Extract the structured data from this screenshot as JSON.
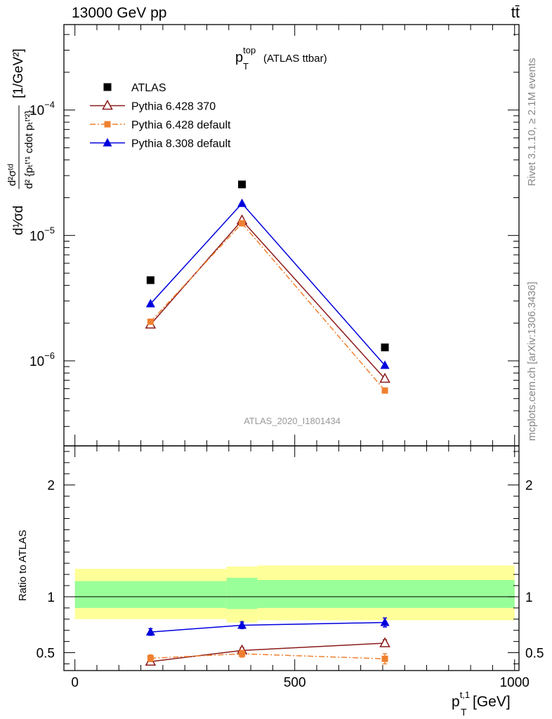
{
  "header": {
    "left": "13000 GeV pp",
    "right": "tt̄"
  },
  "plot_title": {
    "main": "p",
    "sup": "top",
    "sub": "T",
    "tail": " (ATLAS ttbar)"
  },
  "watermark": "ATLAS_2020_I1801434",
  "side_text": {
    "rivet": "Rivet 3.1.10, ≥ 2.1M events",
    "mcplots": "mcplots.cern.ch [arXiv:1306.3436]"
  },
  "y_axis_title": {
    "numer": "d²σᵗᵈ",
    "denom": "d² {pₜᵗʹ¹ cdot pₜᵗʹ²}",
    "prefix": "d¹⁄σd",
    "unit": "[1/GeV²]"
  },
  "ratio_axis_title": "Ratio to ATLAS",
  "x_axis_title": {
    "main": "p",
    "sup": "t,1",
    "sub": "T",
    "unit": " [GeV]"
  },
  "chart_data": [
    {
      "type": "line",
      "panel": "main",
      "y_scale": "log",
      "xlim": [
        -25,
        1010
      ],
      "ylim": [
        2.1e-07,
        0.00048
      ],
      "y_ticks": [
        {
          "value": 1e-06,
          "base": "10",
          "exp": "−6"
        },
        {
          "value": 1e-05,
          "base": "10",
          "exp": "−5"
        },
        {
          "value": 0.0001,
          "base": "10",
          "exp": "−4"
        }
      ],
      "legend_position": "top-left",
      "series": [
        {
          "name": "ATLAS",
          "style": "data",
          "color": "#000000",
          "marker": "square",
          "x": [
            172,
            380,
            705
          ],
          "y": [
            4.4e-06,
            2.55e-05,
            1.28e-06
          ]
        },
        {
          "name": "Pythia 6.428 370",
          "style": "solid",
          "color": "#8b1a1a",
          "marker": "triangle-open",
          "x": [
            172,
            380,
            705
          ],
          "y": [
            1.95e-06,
            1.32e-05,
            7.2e-07
          ]
        },
        {
          "name": "Pythia 6.428 default",
          "style": "dashdot",
          "color": "#f08030",
          "marker": "square-small",
          "x": [
            172,
            380,
            705
          ],
          "y": [
            2.05e-06,
            1.25e-05,
            5.8e-07
          ]
        },
        {
          "name": "Pythia 8.308 default",
          "style": "solid",
          "color": "#0000dd",
          "marker": "triangle",
          "x": [
            172,
            380,
            705
          ],
          "y": [
            2.85e-06,
            1.8e-05,
            9.2e-07
          ]
        }
      ]
    },
    {
      "type": "line",
      "panel": "ratio",
      "xlim": [
        -25,
        1010
      ],
      "ylim": [
        0.34,
        2.35
      ],
      "y_ticks": [
        0.5,
        1,
        2
      ],
      "x_ticks": [
        0,
        500,
        1000
      ],
      "bands": [
        {
          "x0": 0,
          "x1": 345,
          "yellow": [
            0.8,
            1.25
          ],
          "green": [
            0.9,
            1.14
          ]
        },
        {
          "x0": 345,
          "x1": 415,
          "yellow": [
            0.77,
            1.27
          ],
          "green": [
            0.89,
            1.17
          ]
        },
        {
          "x0": 415,
          "x1": 1000,
          "yellow": [
            0.79,
            1.28
          ],
          "green": [
            0.9,
            1.15
          ]
        }
      ],
      "series": [
        {
          "name": "Pythia 6.428 370",
          "color": "#8b1a1a",
          "style": "solid",
          "marker": "triangle-open",
          "x": [
            172,
            380,
            705
          ],
          "y": [
            0.42,
            0.52,
            0.585
          ],
          "err": [
            0.02,
            0.025,
            0.03
          ]
        },
        {
          "name": "Pythia 6.428 default",
          "color": "#f08030",
          "style": "dashdot",
          "marker": "square-small",
          "x": [
            172,
            380,
            705
          ],
          "y": [
            0.45,
            0.49,
            0.445
          ],
          "err": [
            0.03,
            0.03,
            0.045
          ]
        },
        {
          "name": "Pythia 8.308 default",
          "color": "#0000dd",
          "style": "solid",
          "marker": "triangle",
          "x": [
            172,
            380,
            705
          ],
          "y": [
            0.685,
            0.745,
            0.77
          ],
          "err": [
            0.03,
            0.03,
            0.04
          ]
        }
      ]
    }
  ]
}
